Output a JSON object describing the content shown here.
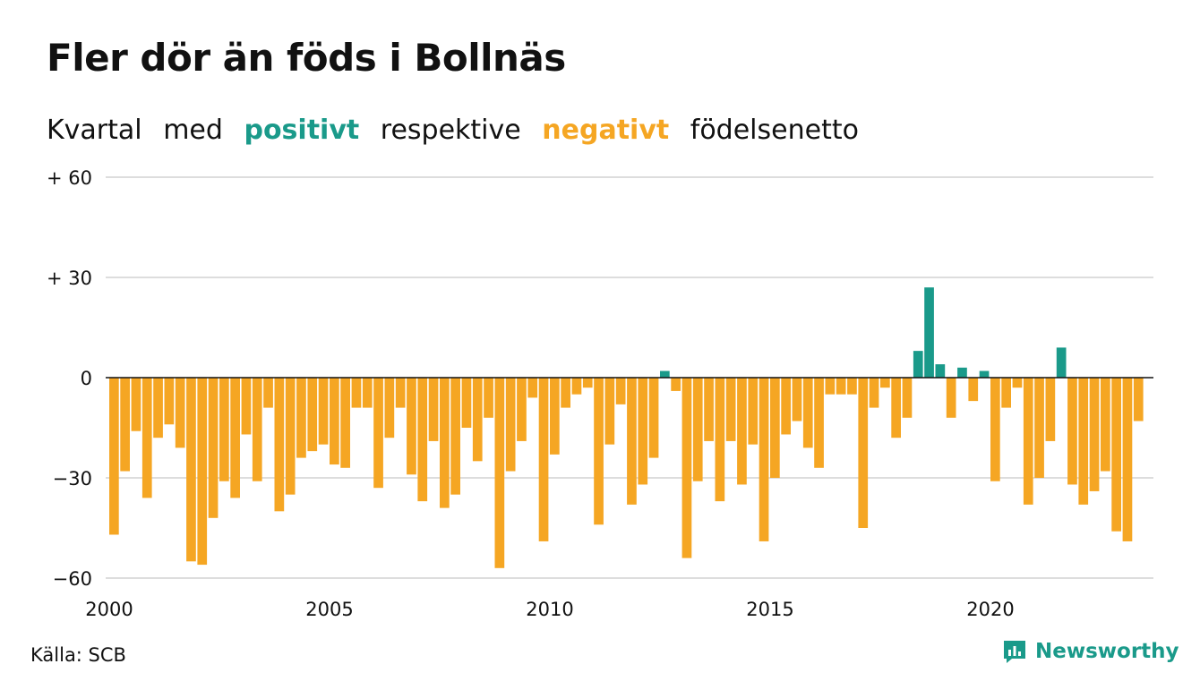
{
  "header": {
    "title": "Fler dör än föds i Bollnäs",
    "subtitle": {
      "part1": "Kvartal",
      "part2": "med",
      "positive": "positivt",
      "part3": "respektive",
      "negative": "negativt",
      "part4": "födelsenetto"
    }
  },
  "footer": {
    "source": "Källa: SCB",
    "brand": "Newsworthy"
  },
  "colors": {
    "positive": "#1a9a8a",
    "negative": "#f5a623",
    "grid": "#dddddd",
    "axis": "#111111"
  },
  "chart_data": {
    "type": "bar",
    "title": "Fler dör än föds i Bollnäs",
    "xlabel": "",
    "ylabel": "",
    "ylim": [
      -60,
      60
    ],
    "y_ticks": [
      {
        "value": 60,
        "label": "+ 60"
      },
      {
        "value": 30,
        "label": "+ 30"
      },
      {
        "value": 0,
        "label": "0"
      },
      {
        "value": -30,
        "label": "−30"
      },
      {
        "value": -60,
        "label": "−60"
      }
    ],
    "x_ticks": [
      {
        "value": 2000,
        "label": "2000"
      },
      {
        "value": 2005,
        "label": "2005"
      },
      {
        "value": 2010,
        "label": "2010"
      },
      {
        "value": 2015,
        "label": "2015"
      },
      {
        "value": 2020,
        "label": "2020"
      }
    ],
    "x_start": 2000,
    "periods_per_year": 4,
    "values": [
      -47,
      -28,
      -16,
      -36,
      -18,
      -14,
      -21,
      -55,
      -56,
      -42,
      -31,
      -36,
      -17,
      -31,
      -9,
      -40,
      -35,
      -24,
      -22,
      -20,
      -26,
      -27,
      -9,
      -9,
      -33,
      -18,
      -9,
      -29,
      -37,
      -19,
      -39,
      -35,
      -15,
      -25,
      -12,
      -57,
      -28,
      -19,
      -6,
      -49,
      -23,
      -9,
      -5,
      -3,
      -44,
      -20,
      -8,
      -38,
      -32,
      -24,
      2,
      -4,
      -54,
      -31,
      -19,
      -37,
      -19,
      -32,
      -20,
      -49,
      -30,
      -17,
      -13,
      -21,
      -27,
      -5,
      -5,
      -5,
      -45,
      -9,
      -3,
      -18,
      -12,
      8,
      27,
      4,
      -12,
      3,
      -7,
      2,
      -31,
      -9,
      -3,
      -38,
      -30,
      -19,
      9,
      -32,
      -38,
      -34,
      -28,
      -46,
      -49,
      -13
    ],
    "grid": true,
    "legend": "none"
  }
}
